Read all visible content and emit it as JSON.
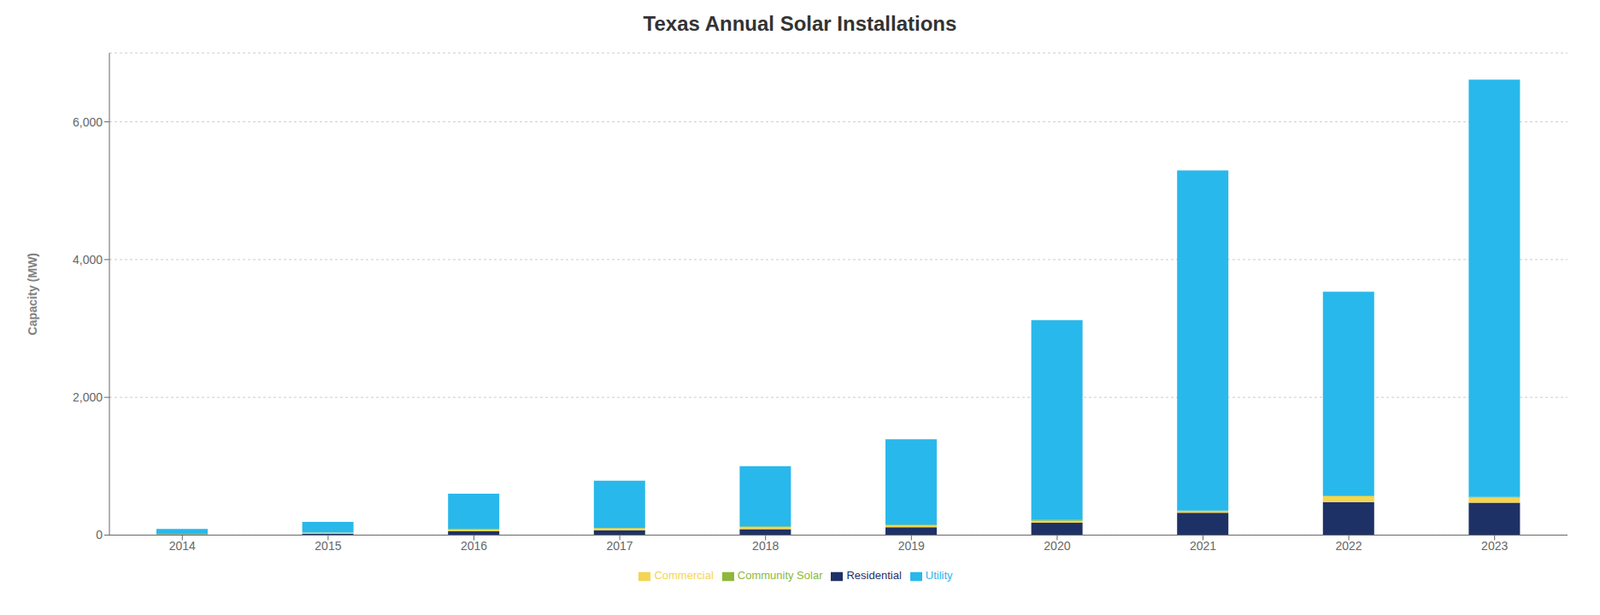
{
  "chart_data": {
    "type": "bar",
    "title": "Texas Annual Solar Installations",
    "ylabel": "Capacity (MW)",
    "categories": [
      "2014",
      "2015",
      "2016",
      "2017",
      "2018",
      "2019",
      "2020",
      "2021",
      "2022",
      "2023"
    ],
    "series": [
      {
        "name": "Residential",
        "color": "#1e3166",
        "values": [
          10,
          22,
          55,
          70,
          85,
          115,
          180,
          325,
          480,
          470
        ]
      },
      {
        "name": "Commercial",
        "color": "#f5d550",
        "values": [
          3,
          12,
          28,
          28,
          32,
          28,
          28,
          22,
          85,
          75
        ]
      },
      {
        "name": "Community Solar",
        "color": "#8db83a",
        "values": [
          1,
          3,
          8,
          8,
          8,
          8,
          12,
          8,
          8,
          8
        ]
      },
      {
        "name": "Utility",
        "color": "#29b8eb",
        "values": [
          75,
          155,
          510,
          685,
          875,
          1240,
          2900,
          4940,
          2960,
          6060
        ]
      }
    ],
    "ylim": [
      0,
      7000
    ],
    "yticks": [
      0,
      {
        "value": 2000,
        "label": "2,000"
      },
      {
        "value": 4000,
        "label": "4,000"
      },
      {
        "value": 6000,
        "label": "6,000"
      }
    ],
    "grid": true,
    "legend": "bottom",
    "stacked": true
  }
}
